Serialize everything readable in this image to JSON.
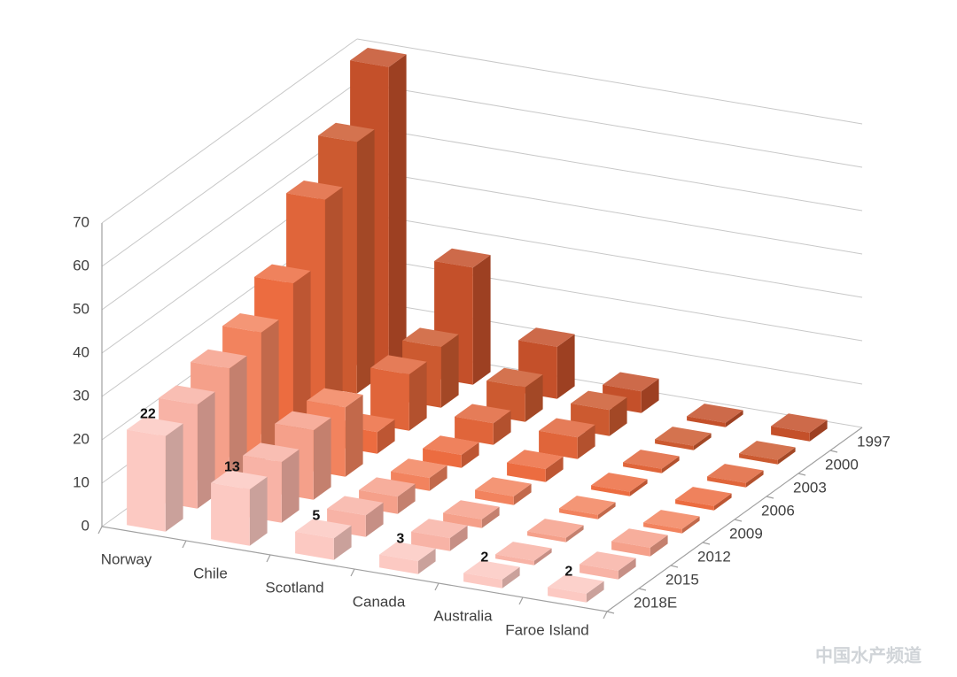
{
  "chart_data": {
    "type": "bar3d",
    "categories": [
      "Norway",
      "Chile",
      "Scotland",
      "Canada",
      "Australia",
      "Faroe Island"
    ],
    "series": [
      {
        "name": "1997",
        "color": "#c4502a",
        "values": [
          70,
          27,
          12,
          5,
          1,
          2
        ]
      },
      {
        "name": "2000",
        "color": "#cc5a30",
        "values": [
          58,
          14,
          8,
          6,
          1,
          1
        ]
      },
      {
        "name": "2003",
        "color": "#e0653a",
        "values": [
          50,
          13,
          5,
          5,
          1,
          1
        ]
      },
      {
        "name": "2006",
        "color": "#ec6c40",
        "values": [
          36,
          5,
          3,
          3,
          1,
          1
        ]
      },
      {
        "name": "2009",
        "color": "#f2835e",
        "values": [
          30,
          16,
          3,
          2,
          1,
          1
        ]
      },
      {
        "name": "2012",
        "color": "#f5a08a",
        "values": [
          27,
          16,
          4,
          2,
          1,
          2
        ]
      },
      {
        "name": "2015",
        "color": "#f8b3a6",
        "values": [
          24,
          14,
          5,
          3,
          1,
          2
        ]
      },
      {
        "name": "2018E",
        "color": "#fcc9c2",
        "values": [
          22,
          13,
          5,
          3,
          2,
          2
        ],
        "data_labels": true
      }
    ],
    "ylim": [
      0,
      70
    ],
    "yticks": [
      0,
      10,
      20,
      30,
      40,
      50,
      60,
      70
    ],
    "grid": true,
    "watermark": "中国水产频道"
  }
}
